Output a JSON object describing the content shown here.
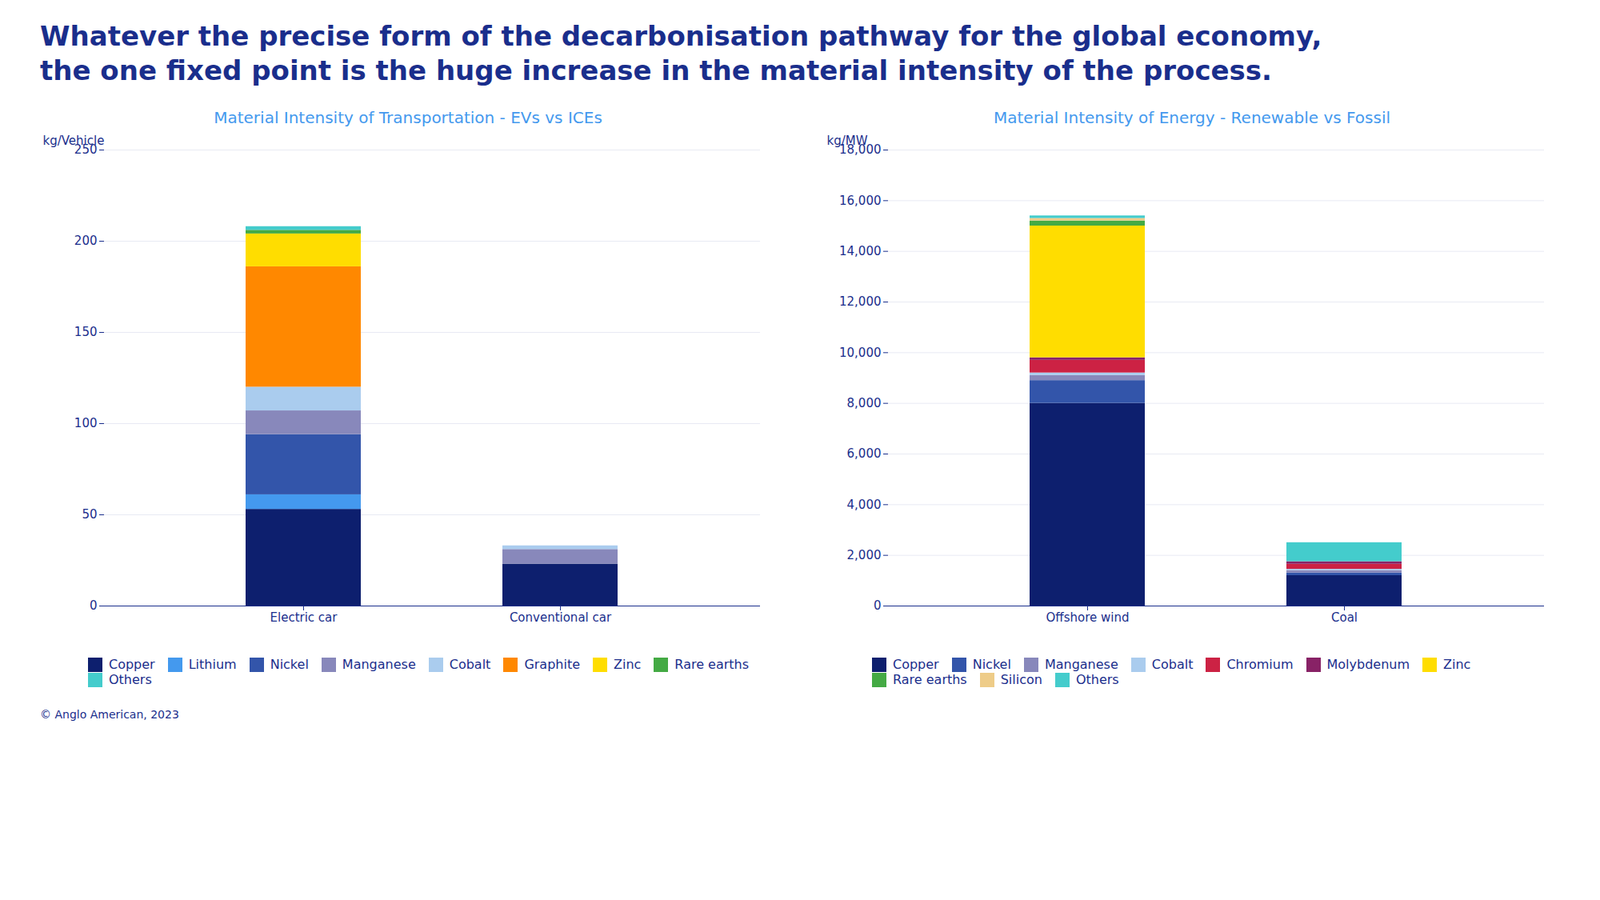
{
  "title": "Whatever the precise form of the decarbonisation pathway for the global economy,\nthe one fixed point is the huge increase in the material intensity of the process.",
  "annotations": [
    "© Anglo American, 2023"
  ],
  "chart_data": [
    {
      "type": "bar",
      "stacked": true,
      "grid": true,
      "legend": "bottom",
      "title": "Material Intensity of Transportation - EVs vs ICEs",
      "ylabel": "kg/Vehicle",
      "ylim": [
        0,
        250
      ],
      "yticks": [
        0,
        50,
        100,
        150,
        200,
        250
      ],
      "categories": [
        "Electric car",
        "Conventional car"
      ],
      "series": [
        {
          "name": "Copper",
          "color": "#0d1f6e",
          "values": [
            53,
            23
          ]
        },
        {
          "name": "Lithium",
          "color": "#4499ee",
          "values": [
            8,
            0
          ]
        },
        {
          "name": "Nickel",
          "color": "#3355aa",
          "values": [
            33,
            0
          ]
        },
        {
          "name": "Manganese",
          "color": "#8888bb",
          "values": [
            13,
            8
          ]
        },
        {
          "name": "Cobalt",
          "color": "#aaccee",
          "values": [
            13,
            2
          ]
        },
        {
          "name": "Graphite",
          "color": "#ff8800",
          "values": [
            66,
            0
          ]
        },
        {
          "name": "Zinc",
          "color": "#ffdd00",
          "values": [
            18,
            0
          ]
        },
        {
          "name": "Rare earths",
          "color": "#44aa44",
          "values": [
            2,
            0
          ]
        },
        {
          "name": "Others",
          "color": "#44cccc",
          "values": [
            2,
            0
          ]
        }
      ]
    },
    {
      "type": "bar",
      "stacked": true,
      "grid": true,
      "legend": "bottom",
      "title": "Material Intensity of Energy - Renewable vs Fossil",
      "ylabel": "kg/MW",
      "ylim": [
        0,
        18000
      ],
      "yticks": [
        0,
        {
          "value": 2000,
          "label": "2,000"
        },
        {
          "value": 4000,
          "label": "4,000"
        },
        {
          "value": 6000,
          "label": "6,000"
        },
        {
          "value": 8000,
          "label": "8,000"
        },
        {
          "value": 10000,
          "label": "10,000"
        },
        {
          "value": 12000,
          "label": "12,000"
        },
        {
          "value": 14000,
          "label": "14,000"
        },
        {
          "value": 16000,
          "label": "16,000"
        },
        {
          "value": 18000,
          "label": "18,000"
        }
      ],
      "categories": [
        "Offshore wind",
        "Coal"
      ],
      "series": [
        {
          "name": "Copper",
          "color": "#0d1f6e",
          "values": [
            8000,
            1200
          ]
        },
        {
          "name": "Nickel",
          "color": "#3355aa",
          "values": [
            900,
            100
          ]
        },
        {
          "name": "Manganese",
          "color": "#8888bb",
          "values": [
            200,
            100
          ]
        },
        {
          "name": "Cobalt",
          "color": "#aaccee",
          "values": [
            100,
            50
          ]
        },
        {
          "name": "Chromium",
          "color": "#cc2244",
          "values": [
            500,
            200
          ]
        },
        {
          "name": "Molybdenum",
          "color": "#882266",
          "values": [
            100,
            100
          ]
        },
        {
          "name": "Zinc",
          "color": "#ffdd00",
          "values": [
            5200,
            0
          ]
        },
        {
          "name": "Rare earths",
          "color": "#44aa44",
          "values": [
            200,
            0
          ]
        },
        {
          "name": "Silicon",
          "color": "#eecc88",
          "values": [
            100,
            0
          ]
        },
        {
          "name": "Others",
          "color": "#44cccc",
          "values": [
            100,
            750
          ]
        }
      ]
    }
  ]
}
